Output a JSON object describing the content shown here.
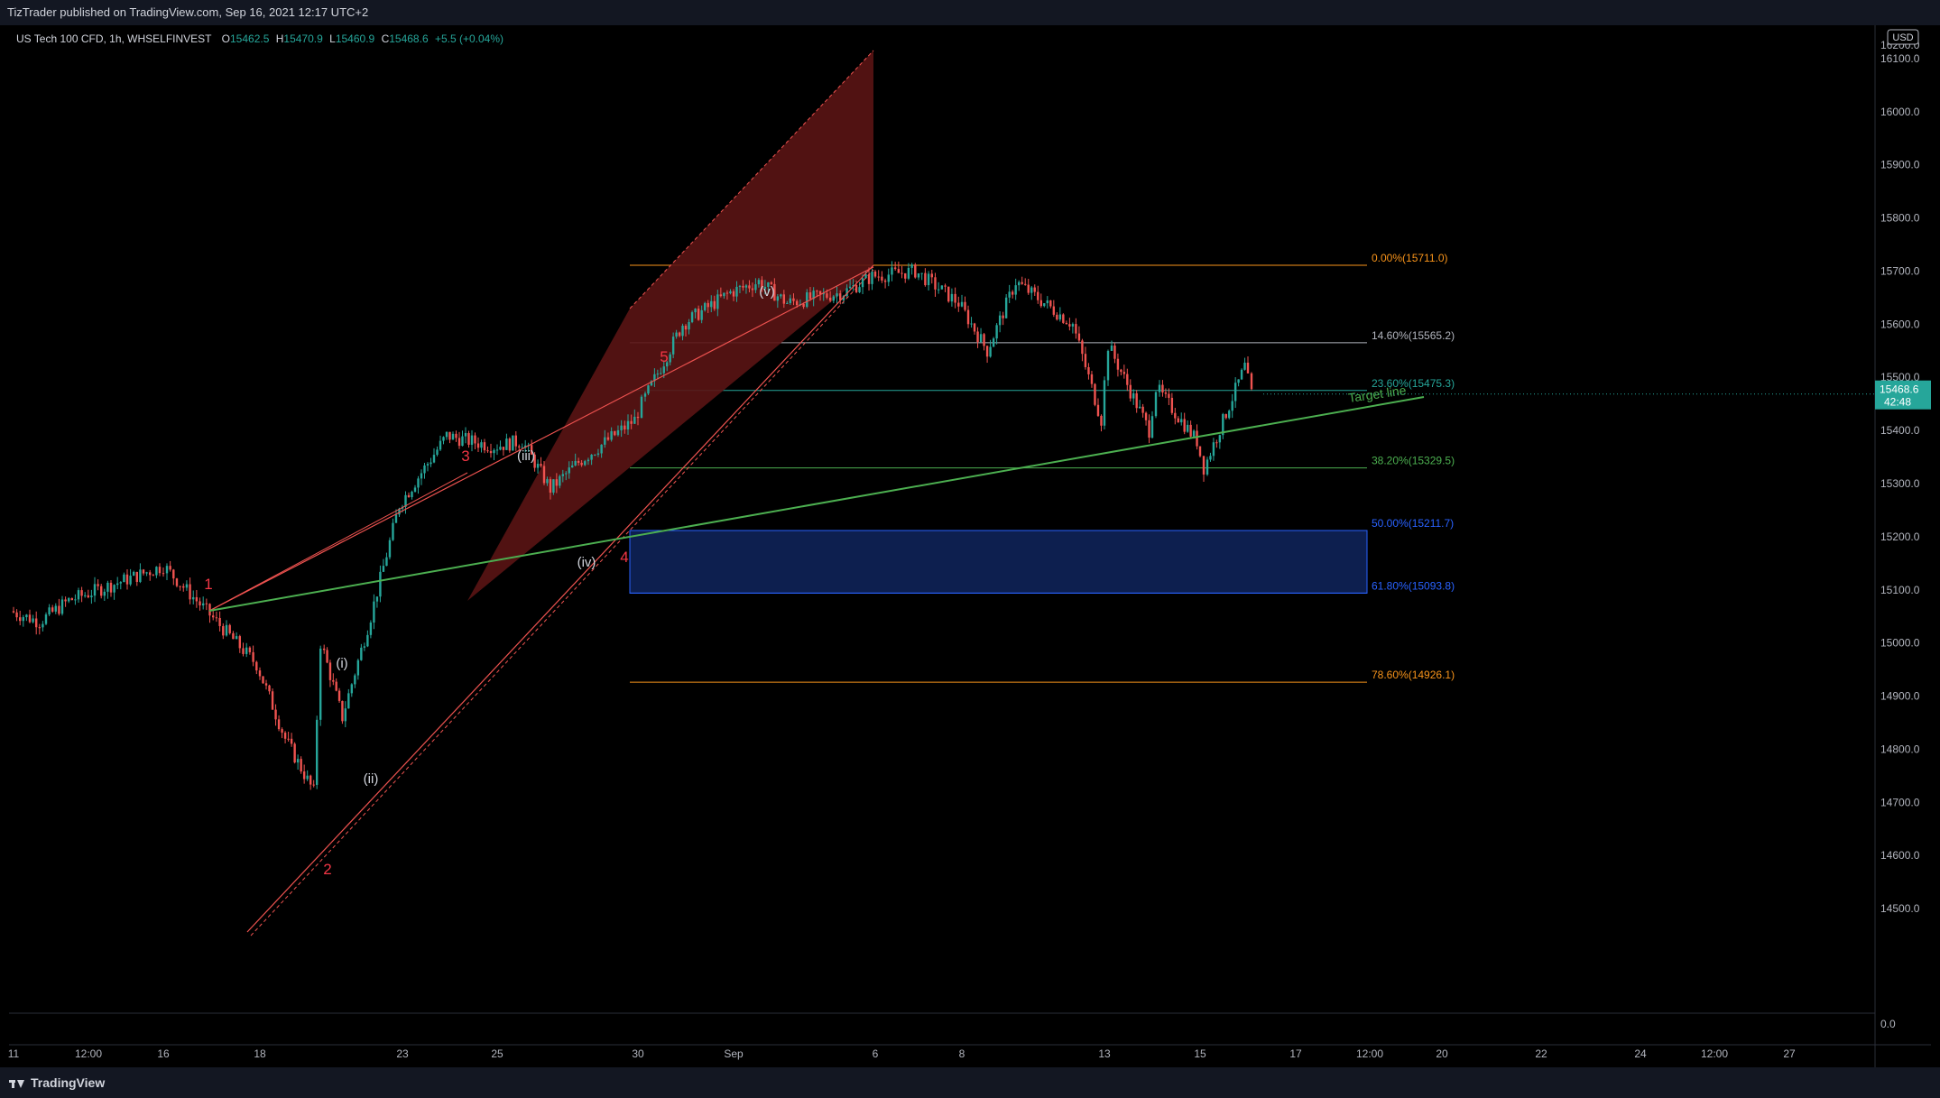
{
  "header": {
    "published_text": "TizTrader published on TradingView.com, Sep 16, 2021 12:17 UTC+2"
  },
  "legend": {
    "symbol": "US Tech 100 CFD, 1h, WHSELFINVEST",
    "open_label": "O",
    "open_value": "15462.5",
    "high_label": "H",
    "high_value": "15470.9",
    "low_label": "L",
    "low_value": "15460.9",
    "close_label": "C",
    "close_value": "15468.6",
    "change": "+5.5 (+0.04%)"
  },
  "footer": {
    "brand": "TradingView"
  },
  "colors": {
    "up": "#26a69a",
    "down": "#ef5350",
    "wave_label": "#f23645",
    "target_line": "#4caf50",
    "zone_fill": "#0d1f4f",
    "zone_border": "#2962ff",
    "fib_0": "#f7931a",
    "fib_146": "#b2b5be",
    "fib_236": "#26a69a",
    "fib_382": "#4caf50",
    "fib_50": "#2962ff",
    "fib_618": "#2962ff",
    "fib_786": "#f7931a",
    "price_badge": "#26a69a"
  },
  "chart_data": {
    "type": "candlestick",
    "currency_badge": "USD",
    "ylim": [
      14400,
      16200
    ],
    "y_ticks": [
      14500,
      14600,
      14700,
      14800,
      14900,
      15000,
      15100,
      15200,
      15300,
      15400,
      15500,
      15600,
      15700,
      15800,
      15900,
      16000,
      16100
    ],
    "y_tick_labels": [
      "14500.0",
      "14600.0",
      "14700.0",
      "14800.0",
      "14900.0",
      "15000.0",
      "15100.0",
      "15200.0",
      "15300.0",
      "15400.0",
      "15500.0",
      "15600.0",
      "15700.0",
      "15800.0",
      "15900.0",
      "16000.0",
      "16100.0"
    ],
    "top_tick_label": "16200.0",
    "volume_axis_label": "0.0",
    "x_tick_labels": [
      "11",
      "12:00",
      "16",
      "18",
      "23",
      "25",
      "30",
      "Sep",
      "6",
      "8",
      "13",
      "15",
      "17",
      "12:00",
      "20",
      "22",
      "24",
      "12:00",
      "27"
    ],
    "current_price": {
      "value": 15468.6,
      "label": "15468.6",
      "countdown": "42:48"
    },
    "price_path": [
      [
        "Aug 11",
        15060
      ],
      [
        "Aug 12",
        15040
      ],
      [
        "Aug 13",
        15080
      ],
      [
        "Aug 16",
        15140
      ],
      [
        "Aug 16",
        15145
      ],
      [
        "Aug 17",
        15060
      ],
      [
        "Aug 18",
        14960
      ],
      [
        "Aug 19",
        14820
      ],
      [
        "Aug 20",
        14720
      ],
      [
        "Aug 20",
        15000
      ],
      [
        "Aug 21",
        14860
      ],
      [
        "Aug 22",
        15050
      ],
      [
        "Aug 23",
        15260
      ],
      [
        "Aug 24",
        15390
      ],
      [
        "Aug 25",
        15370
      ],
      [
        "Aug 26",
        15380
      ],
      [
        "Aug 27",
        15290
      ],
      [
        "Aug 28",
        15340
      ],
      [
        "Aug 30",
        15420
      ],
      [
        "Aug 30",
        15450
      ],
      [
        "Aug 31",
        15600
      ],
      [
        "Sep 1",
        15660
      ],
      [
        "Sep 2",
        15680
      ],
      [
        "Sep 3",
        15640
      ],
      [
        "Sep 5",
        15660
      ],
      [
        "Sep 6",
        15690
      ],
      [
        "Sep 7",
        15700
      ],
      [
        "Sep 8",
        15640
      ],
      [
        "Sep 9",
        15550
      ],
      [
        "Sep 10",
        15680
      ],
      [
        "Sep 12",
        15600
      ],
      [
        "Sep 13",
        15420
      ],
      [
        "Sep 13",
        15560
      ],
      [
        "Sep 14",
        15400
      ],
      [
        "Sep 14",
        15480
      ],
      [
        "Sep 15",
        15380
      ],
      [
        "Sep 15",
        15330
      ],
      [
        "Sep 16",
        15520
      ],
      [
        "Sep 16",
        15468.6
      ]
    ],
    "fib_levels": [
      {
        "ratio": "0.00%",
        "value": 15711.0,
        "label": "0.00%(15711.0)"
      },
      {
        "ratio": "14.60%",
        "value": 15565.2,
        "label": "14.60%(15565.2)"
      },
      {
        "ratio": "23.60%",
        "value": 15475.3,
        "label": "23.60%(15475.3)"
      },
      {
        "ratio": "38.20%",
        "value": 15329.5,
        "label": "38.20%(15329.5)"
      },
      {
        "ratio": "50.00%",
        "value": 15211.7,
        "label": "50.00%(15211.7)"
      },
      {
        "ratio": "61.80%",
        "value": 15093.8,
        "label": "61.80%(15093.8)"
      },
      {
        "ratio": "78.60%",
        "value": 14926.1,
        "label": "78.60%(14926.1)"
      }
    ],
    "target_zone": {
      "from": 15093.8,
      "to": 15211.7
    },
    "target_line_label": "Target line",
    "wave_labels_primary": [
      "1",
      "2",
      "3",
      "4",
      "5"
    ],
    "wave_labels_minor": [
      "(i)",
      "(ii)",
      "(iii)",
      "(iv)",
      "(v)"
    ]
  }
}
